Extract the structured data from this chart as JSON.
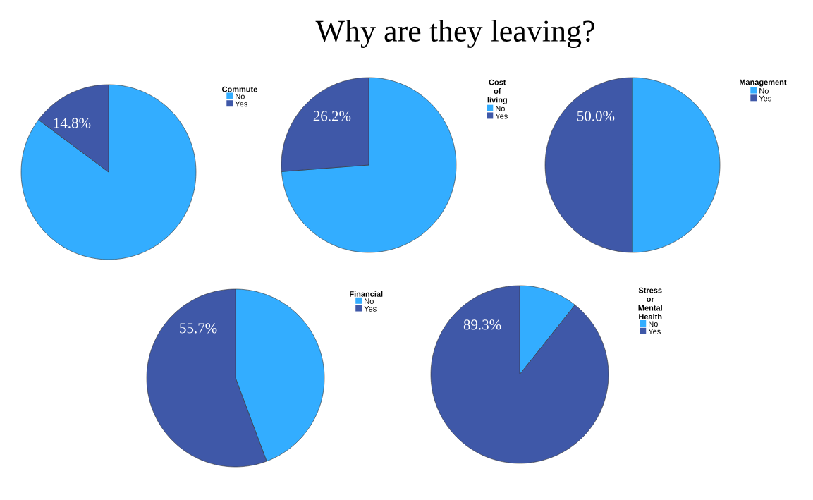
{
  "chart_data": [
    {
      "type": "pie",
      "legend_title": "Commute",
      "categories": [
        "No",
        "Yes"
      ],
      "values": [
        85.2,
        14.8
      ],
      "colors": [
        "#33adff",
        "#3f58a8"
      ],
      "value_labels": [
        null,
        "14.8%"
      ],
      "legend": "top right"
    },
    {
      "type": "pie",
      "title": "Why are they leaving?",
      "legend_title": "Cost of living",
      "categories": [
        "No",
        "Yes"
      ],
      "values": [
        73.8,
        26.2
      ],
      "colors": [
        "#33adff",
        "#3f58a8"
      ],
      "value_labels": [
        null,
        "26.2%"
      ],
      "legend": "top right"
    },
    {
      "type": "pie",
      "legend_title": "Management",
      "categories": [
        "No",
        "Yes"
      ],
      "values": [
        50.0,
        50.0
      ],
      "colors": [
        "#33adff",
        "#3f58a8"
      ],
      "value_labels": [
        null,
        "50.0%"
      ],
      "legend": "top right"
    },
    {
      "type": "pie",
      "legend_title": "Financial",
      "categories": [
        "No",
        "Yes"
      ],
      "values": [
        44.3,
        55.7
      ],
      "colors": [
        "#33adff",
        "#3f58a8"
      ],
      "value_labels": [
        null,
        "55.7%"
      ],
      "legend": "top right"
    },
    {
      "type": "pie",
      "legend_title": "Stress or Mental Health",
      "categories": [
        "No",
        "Yes"
      ],
      "values": [
        10.7,
        89.3
      ],
      "colors": [
        "#33adff",
        "#3f58a8"
      ],
      "value_labels": [
        null,
        "89.3%"
      ],
      "legend": "top right"
    }
  ]
}
